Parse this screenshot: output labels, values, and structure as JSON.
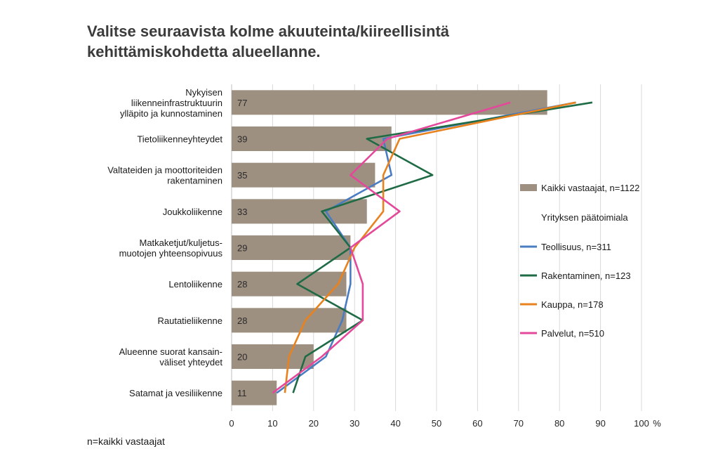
{
  "title_lines": [
    "Valitse seuraavista kolme akuuteinta/kiireellisintä",
    "kehittämiskohdetta alueellanne."
  ],
  "footnote": "n=kaikki vastaajat",
  "colors": {
    "bar": "#9e9081",
    "Teollisuus": "#4a7cc2",
    "Rakentaminen": "#1f6b46",
    "Kauppa": "#e8821e",
    "Palvelut": "#e4489a",
    "grid": "#d9d9d9"
  },
  "chart_data": {
    "type": "bar",
    "orientation": "horizontal",
    "title": "Valitse seuraavista kolme akuuteinta/kiireellisintä kehittämiskohdetta alueellanne.",
    "categories": [
      [
        "Nykyisen",
        "liikenneinfrastruktuurin",
        "ylläpito ja kunnostaminen"
      ],
      [
        "Tietoliikenneyhteydet"
      ],
      [
        "Valtateiden ja moottoriteiden",
        "rakentaminen"
      ],
      [
        "Joukkoliikenne"
      ],
      [
        "Matkaketjut/kuljetus-",
        "muotojen yhteensopivuus"
      ],
      [
        "Lentoliikenne"
      ],
      [
        "Rautatieliikenne"
      ],
      [
        "Alueenne suorat kansain-",
        "väliset yhteydet"
      ],
      [
        "Satamat ja vesiliikenne"
      ]
    ],
    "bar_series": {
      "name": "Kaikki vastaajat, n=1122",
      "values": [
        77,
        39,
        35,
        33,
        29,
        28,
        28,
        20,
        11
      ]
    },
    "legend_header": "Yrityksen päätoimiala",
    "line_series": [
      {
        "name": "Teollisuus, n=311",
        "key": "Teollisuus",
        "values": [
          84,
          37,
          39,
          23,
          29,
          29,
          27,
          23,
          11
        ]
      },
      {
        "name": "Rakentaminen, n=123",
        "key": "Rakentaminen",
        "values": [
          88,
          33,
          49,
          22,
          29,
          16,
          32,
          18,
          15
        ]
      },
      {
        "name": "Kauppa, n=178",
        "key": "Kauppa",
        "values": [
          84,
          41,
          37,
          37,
          30,
          26,
          18,
          14,
          13
        ]
      },
      {
        "name": "Palvelut, n=510",
        "key": "Palvelut",
        "values": [
          68,
          38,
          29,
          41,
          29,
          32,
          32,
          22,
          10
        ]
      }
    ],
    "xlim": [
      0,
      100
    ],
    "xticks": [
      "0",
      "10",
      "20",
      "30",
      "40",
      "50",
      "60",
      "70",
      "80",
      "90",
      "100"
    ],
    "xunit": "%",
    "grid": true,
    "legend_position": "right"
  }
}
